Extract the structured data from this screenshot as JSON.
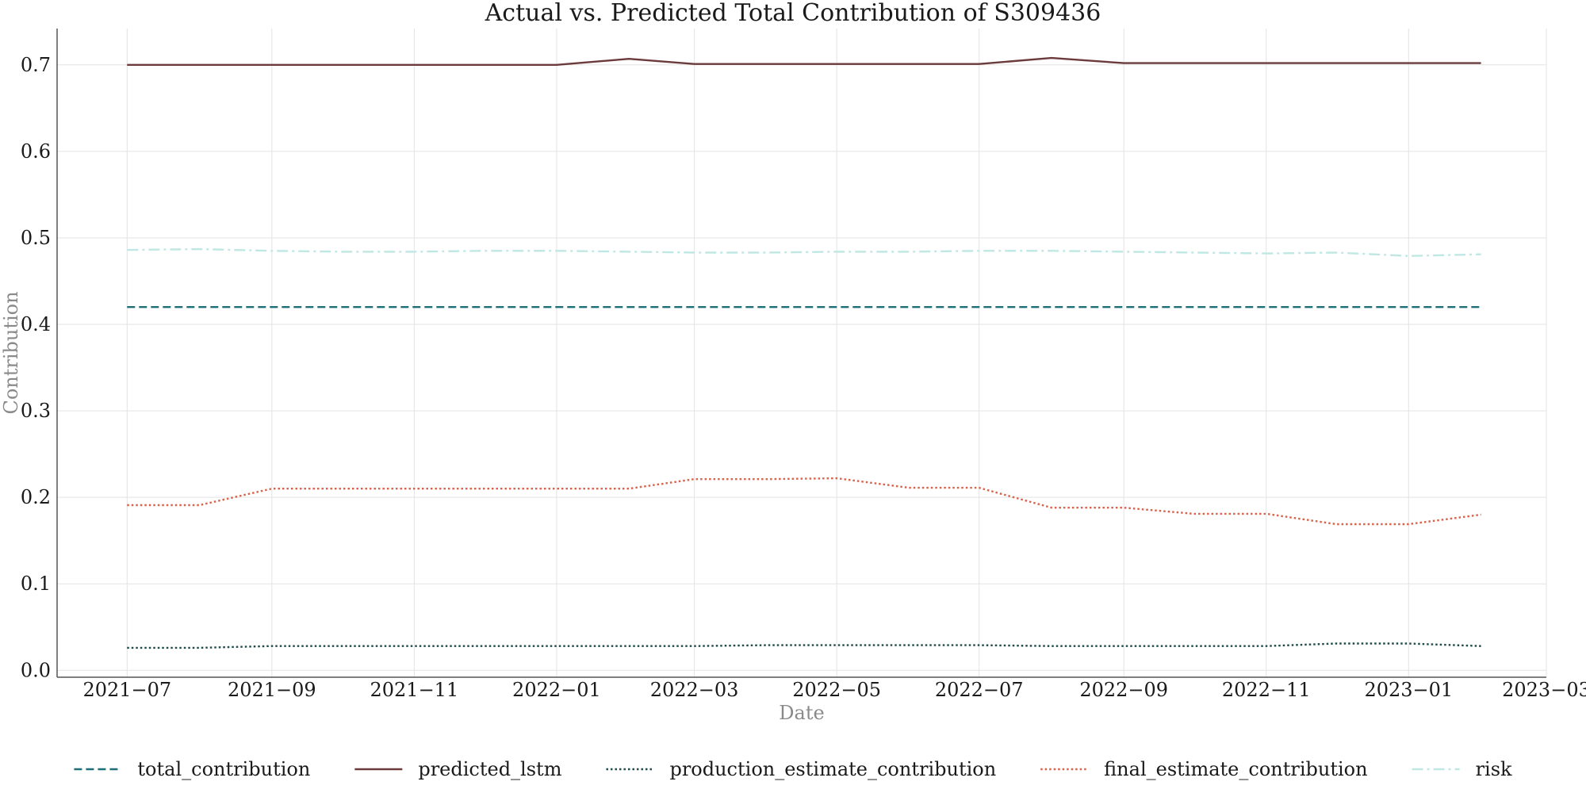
{
  "chart_data": {
    "type": "line",
    "title": "Actual vs. Predicted Total Contribution of S309436",
    "xlabel": "Date",
    "ylabel": "Contribution",
    "x": [
      "2021-07-01",
      "2021-08-01",
      "2021-09-01",
      "2021-10-01",
      "2021-11-01",
      "2021-12-01",
      "2022-01-01",
      "2022-02-01",
      "2022-03-01",
      "2022-04-01",
      "2022-05-01",
      "2022-06-01",
      "2022-07-01",
      "2022-08-01",
      "2022-09-01",
      "2022-10-01",
      "2022-11-01",
      "2022-12-01",
      "2023-01-01",
      "2023-02-01"
    ],
    "xlim": [
      "2021-06-01",
      "2023-03-01"
    ],
    "ylim": [
      -0.008,
      0.742
    ],
    "x_ticks": [
      "2021-07-01",
      "2021-09-01",
      "2021-11-01",
      "2022-01-01",
      "2022-03-01",
      "2022-05-01",
      "2022-07-01",
      "2022-09-01",
      "2022-11-01",
      "2023-01-01",
      "2023-03-01"
    ],
    "x_tick_labels": [
      "2021−07",
      "2021−09",
      "2021−11",
      "2022−01",
      "2022−03",
      "2022−05",
      "2022−07",
      "2022−09",
      "2022−11",
      "2023−01",
      "2023−03"
    ],
    "y_ticks": [
      0.0,
      0.1,
      0.2,
      0.3,
      0.4,
      0.5,
      0.6,
      0.7
    ],
    "y_tick_labels": [
      "0.0",
      "0.1",
      "0.2",
      "0.3",
      "0.4",
      "0.5",
      "0.6",
      "0.7"
    ],
    "grid": true,
    "legend_position": "bottom",
    "series": [
      {
        "name": "total_contribution",
        "color": "#1f6f78",
        "dash": "dashed",
        "values": [
          0.42,
          0.42,
          0.42,
          0.42,
          0.42,
          0.42,
          0.42,
          0.42,
          0.42,
          0.42,
          0.42,
          0.42,
          0.42,
          0.42,
          0.42,
          0.42,
          0.42,
          0.42,
          0.42,
          0.42
        ]
      },
      {
        "name": "predicted_lstm",
        "color": "#6b3a3a",
        "dash": "solid",
        "values": [
          0.7,
          0.7,
          0.7,
          0.7,
          0.7,
          0.7,
          0.7,
          0.707,
          0.701,
          0.701,
          0.701,
          0.701,
          0.701,
          0.708,
          0.702,
          0.702,
          0.702,
          0.702,
          0.702,
          0.702
        ]
      },
      {
        "name": "production_estimate_contribution",
        "color": "#1e4a4a",
        "dash": "dotted",
        "values": [
          0.026,
          0.026,
          0.028,
          0.028,
          0.028,
          0.028,
          0.028,
          0.028,
          0.028,
          0.029,
          0.029,
          0.029,
          0.029,
          0.028,
          0.028,
          0.028,
          0.028,
          0.031,
          0.031,
          0.028
        ]
      },
      {
        "name": "final_estimate_contribution",
        "color": "#d9624a",
        "dash": "dotted",
        "values": [
          0.191,
          0.191,
          0.21,
          0.21,
          0.21,
          0.21,
          0.21,
          0.21,
          0.221,
          0.221,
          0.222,
          0.211,
          0.211,
          0.188,
          0.188,
          0.181,
          0.181,
          0.169,
          0.169,
          0.18
        ]
      },
      {
        "name": "risk",
        "color": "#bfe8e4",
        "dash": "dashdot",
        "values": [
          0.486,
          0.487,
          0.485,
          0.484,
          0.484,
          0.485,
          0.485,
          0.484,
          0.483,
          0.483,
          0.484,
          0.484,
          0.485,
          0.485,
          0.484,
          0.483,
          0.482,
          0.483,
          0.479,
          0.481
        ]
      }
    ]
  }
}
